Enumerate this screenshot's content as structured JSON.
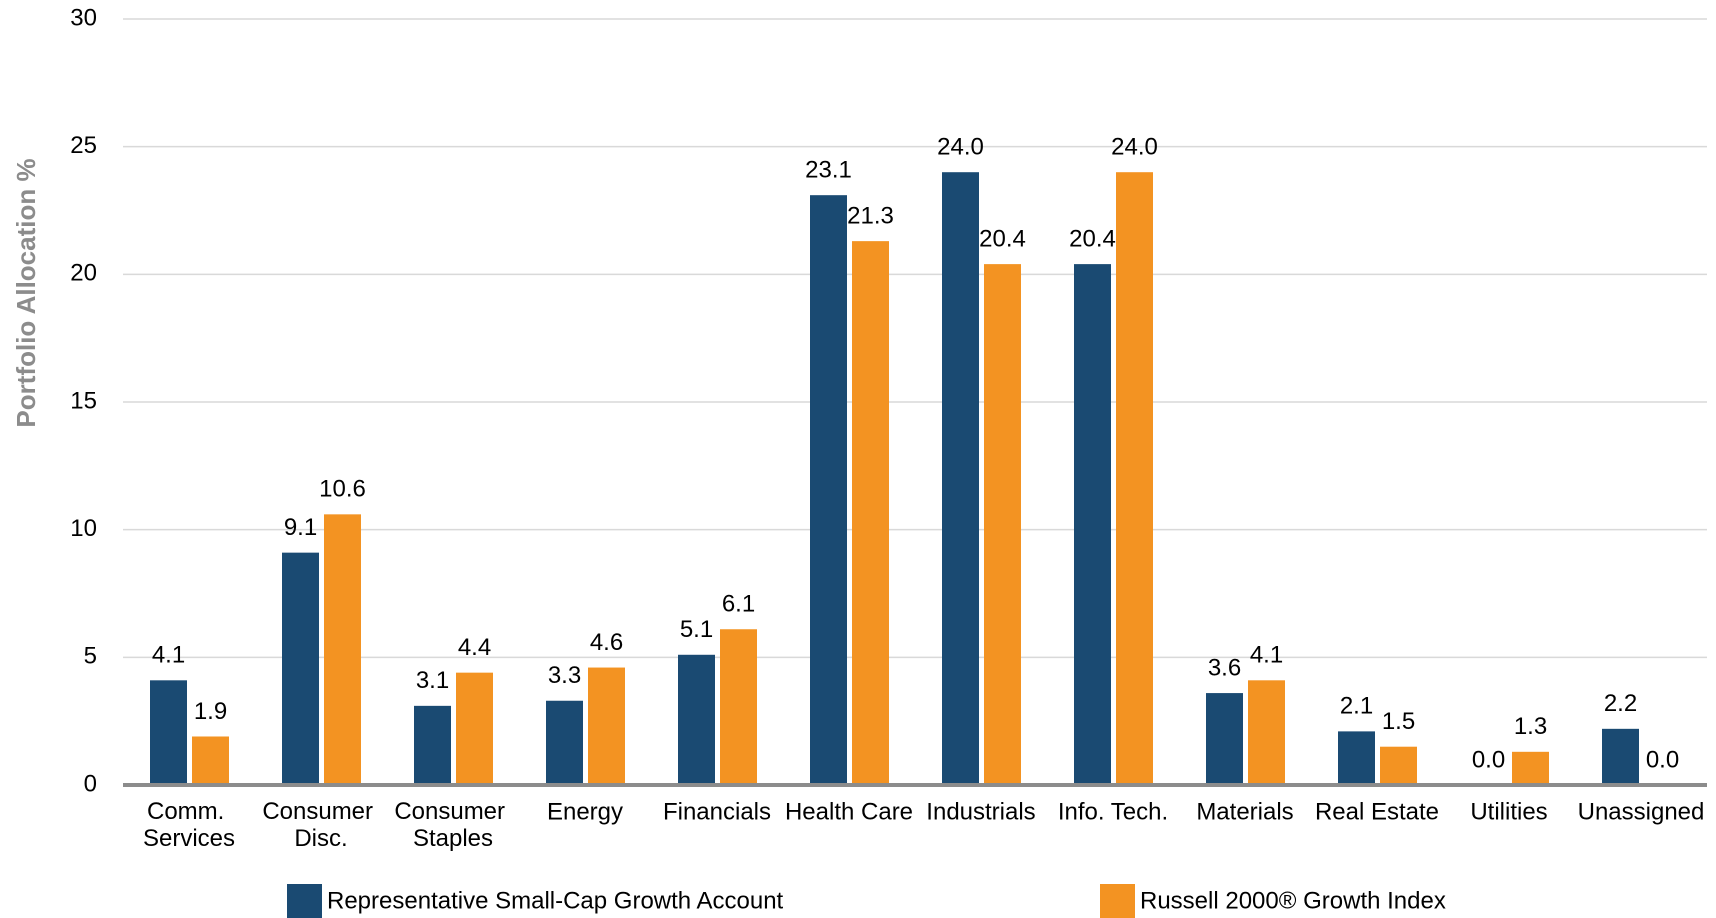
{
  "chart_data": {
    "type": "bar",
    "y_label": "Portfolio Allocation %",
    "categories": [
      "Comm. Services",
      "Consumer Disc.",
      "Consumer Staples",
      "Energy",
      "Financials",
      "Health Care",
      "Industrials",
      "Info. Tech.",
      "Materials",
      "Real Estate",
      "Utilities",
      "Unassigned"
    ],
    "series": [
      {
        "name": "Representative Small-Cap Growth Account",
        "color": "#1a4a72",
        "values": [
          4.1,
          9.1,
          3.1,
          3.3,
          5.1,
          23.1,
          24.0,
          20.4,
          3.6,
          2.1,
          0.0,
          2.2
        ],
        "value_labels": [
          "4.1",
          "9.1",
          "3.1",
          "3.3",
          "5.1",
          "23.1",
          "24.0",
          "20.4",
          "3.6",
          "2.1",
          "0.0",
          "2.2"
        ]
      },
      {
        "name": "Russell 2000® Growth Index",
        "color": "#f39322",
        "values": [
          1.9,
          10.6,
          4.4,
          4.6,
          6.1,
          21.3,
          20.4,
          24.0,
          4.1,
          1.5,
          1.3,
          0.0
        ],
        "value_labels": [
          "1.9",
          "10.6",
          "4.4",
          "4.6",
          "6.1",
          "21.3",
          "20.4",
          "24.0",
          "4.1",
          "1.5",
          "1.3",
          "0.0"
        ]
      }
    ],
    "ylim": [
      0,
      30
    ],
    "yticks": [
      0,
      5,
      10,
      15,
      20,
      25,
      30
    ],
    "grid": true,
    "legend": "bottom"
  }
}
